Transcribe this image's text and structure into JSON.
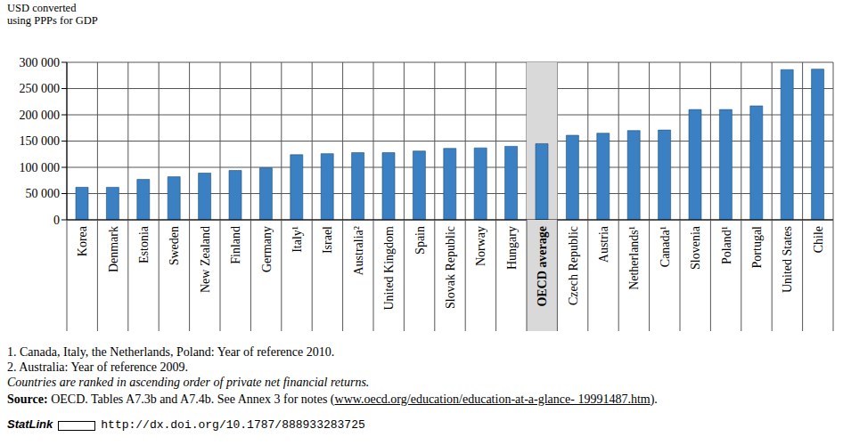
{
  "chart_data": {
    "type": "bar",
    "ylabel": [
      "USD converted",
      "using PPPs for GDP"
    ],
    "categories": [
      "Korea",
      "Denmark",
      "Estonia",
      "Sweden",
      "New Zealand",
      "Finland",
      "Germany",
      "Italy¹",
      "Israel",
      "Australia²",
      "United Kingdom",
      "Spain",
      "Slovak Republic",
      "Norway",
      "Hungary",
      "OECD average",
      "Czech Republic",
      "Austria",
      "Netherlands¹",
      "Canada¹",
      "Slovenia",
      "Poland¹",
      "Portugal",
      "United States",
      "Chile"
    ],
    "values": [
      62000,
      62000,
      77000,
      82000,
      89000,
      94000,
      99000,
      124000,
      126000,
      128000,
      128000,
      131000,
      136000,
      137000,
      140000,
      145000,
      161000,
      165000,
      170000,
      171000,
      210000,
      210000,
      217000,
      286000,
      287000
    ],
    "color": "#3a80c3",
    "highlight": "OECD average",
    "ylim": [
      0,
      300000
    ],
    "yticks": [
      {
        "value": 0,
        "label": "0"
      },
      {
        "value": 50000,
        "label": "50 000"
      },
      {
        "value": 100000,
        "label": "100 000"
      },
      {
        "value": 150000,
        "label": "150 000"
      },
      {
        "value": 200000,
        "label": "200 000"
      },
      {
        "value": 250000,
        "label": "250 000"
      },
      {
        "value": 300000,
        "label": "300 000"
      }
    ],
    "grid": true,
    "notes": [
      "1. Canada, Italy,  the Netherlands, Poland: Year of reference 2010.",
      "2. Australia: Year of reference 2009.",
      "Countries are ranked in ascending order of private net financial returns."
    ],
    "source": {
      "label": "Source:",
      "text": "OECD. Tables A7.3b and A7.4b. See Annex 3 for notes (",
      "link": "www.oecd.org/education/education-at-a-glance- 19991487.htm",
      "end": ")."
    },
    "statlink": {
      "label": "StatLink",
      "url": "http://dx.doi.org/10.1787/888933283725"
    }
  }
}
